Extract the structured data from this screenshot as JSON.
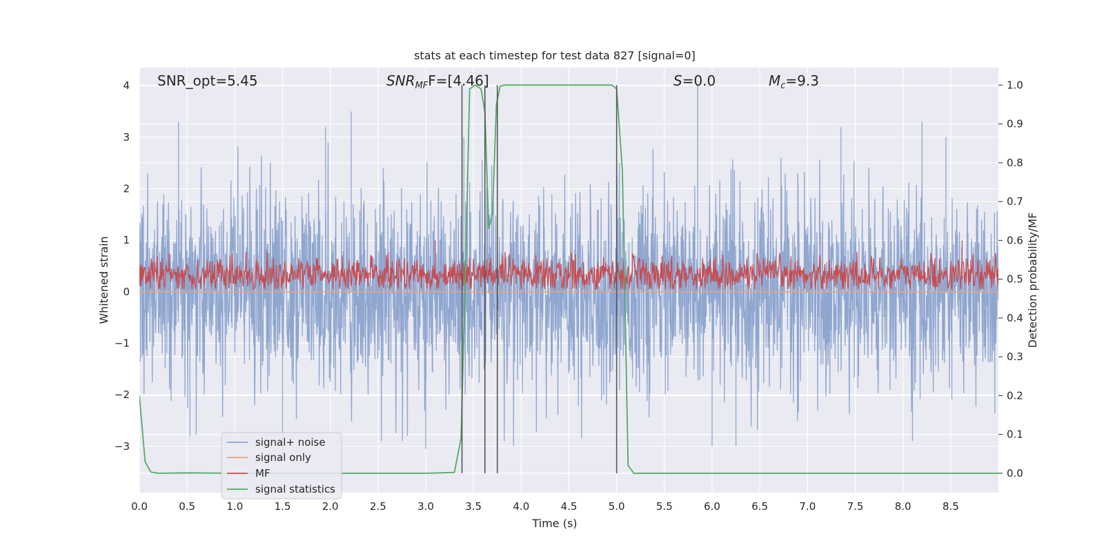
{
  "chart_data": {
    "type": "line",
    "title": "stats at each timestep for test data 827 [signal=0]",
    "xlabel": "Time (s)",
    "ylabel": "Whitened strain",
    "y2label": "Detection probability/MF",
    "xlim": [
      0.0,
      9.0
    ],
    "ylim": [
      -3.9,
      4.35
    ],
    "y2lim": [
      -0.05,
      1.045
    ],
    "x_ticks": [
      0.0,
      0.5,
      1.0,
      1.5,
      2.0,
      2.5,
      3.0,
      3.5,
      4.0,
      4.5,
      5.0,
      5.5,
      6.0,
      6.5,
      7.0,
      7.5,
      8.0,
      8.5
    ],
    "x_tick_labels": [
      "0.0",
      "0.5",
      "1.0",
      "1.5",
      "2.0",
      "2.5",
      "3.0",
      "3.5",
      "4.0",
      "4.5",
      "5.0",
      "5.5",
      "6.0",
      "6.5",
      "7.0",
      "7.5",
      "8.0",
      "8.5"
    ],
    "y_ticks": [
      -3,
      -2,
      -1,
      0,
      1,
      2,
      3,
      4
    ],
    "y_tick_labels": [
      "−3",
      "−2",
      "−1",
      "0",
      "1",
      "2",
      "3",
      "4"
    ],
    "y2_ticks": [
      0.0,
      0.1,
      0.2,
      0.3,
      0.4,
      0.5,
      0.6,
      0.7,
      0.8,
      0.9,
      1.0
    ],
    "y2_tick_labels": [
      "0.0",
      "0.1",
      "0.2",
      "0.3",
      "0.4",
      "0.5",
      "0.6",
      "0.7",
      "0.8",
      "0.9",
      "1.0"
    ],
    "grid": true,
    "legend_placement": "lower-left",
    "annotations": {
      "snr_opt": "SNR_opt=5.45",
      "snr_mf_main": "SNR",
      "snr_mf_sub": "MF",
      "snr_mf_after": "F=[4.46]",
      "s_label_italic": "S",
      "s_label_rest": "=0.0",
      "mc_main": "M",
      "mc_sub": "c",
      "mc_rest": "=9.3"
    },
    "series": [
      {
        "name": "signal+ noise",
        "color": "#8fa6cf",
        "axis": "left",
        "style": "dense-noise",
        "band_upper": 2.0,
        "band_lower": -1.7,
        "peak_values": [
          [
            0.41,
            3.3
          ],
          [
            1.95,
            3.2
          ],
          [
            2.22,
            3.5
          ],
          [
            3.4,
            3.0
          ],
          [
            5.85,
            4.0
          ],
          [
            7.35,
            3.2
          ],
          [
            8.2,
            3.3
          ],
          [
            8.45,
            3.0
          ]
        ],
        "trough_values": [
          [
            0.53,
            -2.8
          ],
          [
            1.5,
            -3.3
          ],
          [
            3.0,
            -3.05
          ],
          [
            3.92,
            -3.0
          ],
          [
            6.0,
            -3.0
          ],
          [
            6.25,
            -3.0
          ],
          [
            8.1,
            -2.9
          ]
        ]
      },
      {
        "name": "signal only",
        "color": "#e8a488",
        "axis": "left",
        "x": [
          0.0,
          9.0
        ],
        "y": [
          0.0,
          0.0
        ]
      },
      {
        "name": "MF",
        "color": "#c44e52",
        "axis": "right",
        "style": "dense-noise",
        "baseline": 0.5,
        "band_upper": 0.58,
        "band_lower": 0.475,
        "peak_values": [
          [
            3.1,
            0.6
          ],
          [
            8.62,
            0.6
          ]
        ]
      },
      {
        "name": "signal statistics",
        "color": "#55a868",
        "axis": "right",
        "x": [
          0.0,
          0.06,
          0.12,
          0.2,
          0.5,
          1.0,
          2.0,
          3.0,
          3.3,
          3.37,
          3.42,
          3.46,
          3.52,
          3.58,
          3.62,
          3.66,
          3.7,
          3.74,
          3.78,
          3.82,
          3.88,
          4.2,
          4.6,
          4.95,
          5.0,
          5.06,
          5.12,
          5.18,
          5.3,
          6.0,
          7.0,
          8.0,
          9.0
        ],
        "y": [
          0.2,
          0.03,
          0.003,
          0.0,
          0.001,
          0.0,
          0.0,
          0.0,
          0.002,
          0.09,
          0.55,
          0.99,
          1.0,
          0.99,
          0.93,
          0.63,
          0.67,
          0.95,
          0.997,
          1.0,
          1.0,
          1.0,
          1.0,
          1.0,
          0.99,
          0.78,
          0.02,
          0.0,
          0.0,
          0.0,
          0.0,
          0.0,
          0.0
        ]
      }
    ],
    "vertical_lines": {
      "color": "#555555",
      "x": [
        3.38,
        3.62,
        3.75,
        5.0
      ]
    }
  }
}
